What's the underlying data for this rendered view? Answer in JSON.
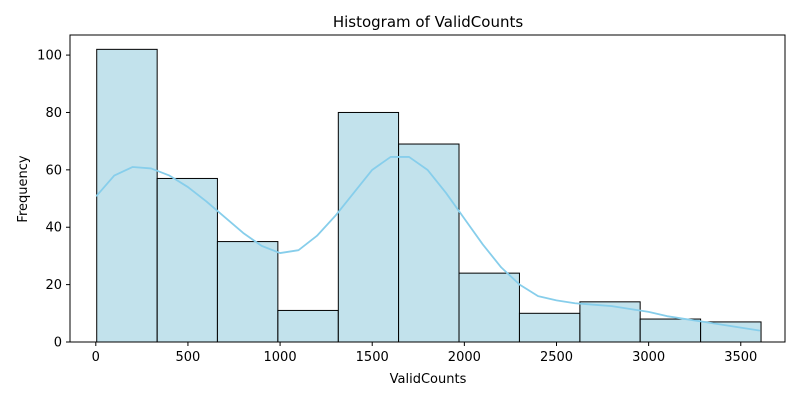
{
  "chart_data": {
    "type": "bar",
    "title": "Histogram of ValidCounts",
    "xlabel": "ValidCounts",
    "ylabel": "Frequency",
    "xlim": [
      -140,
      3740
    ],
    "ylim": [
      0,
      107
    ],
    "x_ticks": [
      0,
      500,
      1000,
      1500,
      2000,
      2500,
      3000,
      3500
    ],
    "y_ticks": [
      0,
      20,
      40,
      60,
      80,
      100
    ],
    "bin_edges": [
      5,
      333,
      660,
      988,
      1316,
      1643,
      1971,
      2299,
      2627,
      2954,
      3282,
      3610
    ],
    "values": [
      102,
      57,
      35,
      11,
      80,
      69,
      24,
      10,
      14,
      8,
      7
    ],
    "bar_color": "#add8e6",
    "bar_fill_opacity": 0.75,
    "bar_edge_color": "#000000",
    "kde": {
      "color": "#87ceeb",
      "points": [
        [
          5,
          51
        ],
        [
          100,
          58
        ],
        [
          200,
          61
        ],
        [
          300,
          60.5
        ],
        [
          400,
          58
        ],
        [
          500,
          54
        ],
        [
          600,
          49
        ],
        [
          700,
          43.5
        ],
        [
          800,
          38
        ],
        [
          900,
          33.5
        ],
        [
          1000,
          31
        ],
        [
          1100,
          32
        ],
        [
          1200,
          37
        ],
        [
          1300,
          44
        ],
        [
          1400,
          52
        ],
        [
          1500,
          60
        ],
        [
          1600,
          64.5
        ],
        [
          1700,
          64.5
        ],
        [
          1800,
          60
        ],
        [
          1900,
          52
        ],
        [
          2000,
          43
        ],
        [
          2100,
          34
        ],
        [
          2200,
          26
        ],
        [
          2300,
          20
        ],
        [
          2400,
          16
        ],
        [
          2500,
          14.5
        ],
        [
          2600,
          13.5
        ],
        [
          2700,
          13
        ],
        [
          2800,
          12.5
        ],
        [
          2900,
          11.5
        ],
        [
          3000,
          10.5
        ],
        [
          3100,
          9
        ],
        [
          3200,
          8
        ],
        [
          3300,
          7
        ],
        [
          3400,
          6
        ],
        [
          3500,
          5
        ],
        [
          3600,
          4
        ]
      ]
    },
    "grid": false
  }
}
